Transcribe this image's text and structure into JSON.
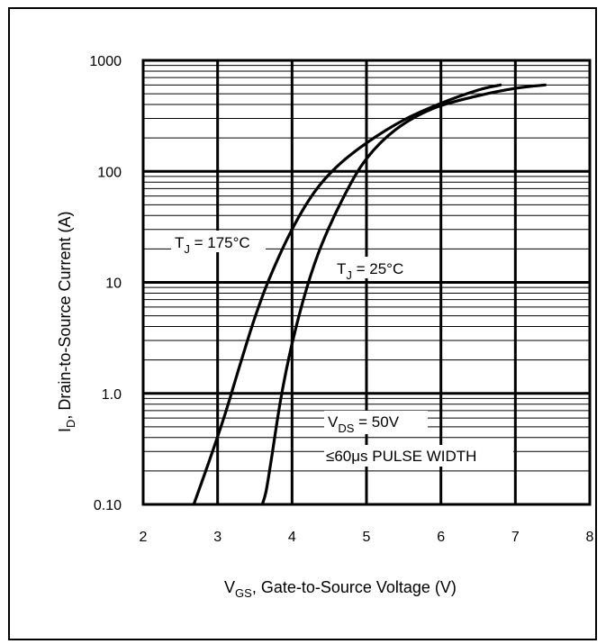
{
  "chart_data": {
    "type": "line",
    "title": "",
    "xlabel_main": "V",
    "xlabel_sub": "GS",
    "xlabel_rest": ", Gate-to-Source Voltage (V)",
    "ylabel_main": "I",
    "ylabel_sub": "D",
    "ylabel_rest": ", Drain-to-Source Current (A)",
    "x_ticks": [
      "2",
      "3",
      "4",
      "5",
      "6",
      "7",
      "8"
    ],
    "y_ticks": [
      "0.10",
      "1.0",
      "10",
      "100",
      "1000"
    ],
    "xlim": [
      2,
      8
    ],
    "ylim": [
      0.1,
      1000
    ],
    "yscale": "log",
    "grid": true,
    "series": [
      {
        "name": "TJ = 175°C",
        "label_main": "T",
        "label_sub": "J",
        "label_rest": " = 175°C",
        "x": [
          2.68,
          2.9,
          3.1,
          3.3,
          3.5,
          3.7,
          4.0,
          4.3,
          4.6,
          5.0,
          5.5,
          6.0,
          6.5,
          6.8
        ],
        "y": [
          0.1,
          0.26,
          0.65,
          1.8,
          4.8,
          11,
          30,
          65,
          110,
          180,
          290,
          410,
          540,
          600
        ]
      },
      {
        "name": "TJ = 25°C",
        "label_main": "T",
        "label_sub": "J",
        "label_rest": " = 25°C",
        "x": [
          3.6,
          3.65,
          3.72,
          3.85,
          4.0,
          4.2,
          4.4,
          4.7,
          5.0,
          5.4,
          5.9,
          6.5,
          7.0,
          7.4
        ],
        "y": [
          0.1,
          0.13,
          0.25,
          0.9,
          2.8,
          9,
          22,
          60,
          130,
          240,
          370,
          480,
          560,
          600
        ]
      }
    ],
    "annotations": {
      "vds_main": "V",
      "vds_sub": "DS",
      "vds_rest": " = 50V",
      "pulse": "≤60μs PULSE WIDTH"
    }
  }
}
